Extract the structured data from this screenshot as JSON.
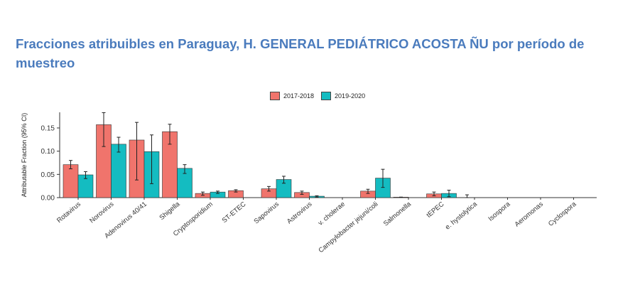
{
  "chart_data": {
    "type": "bar",
    "title": "Fracciones atribuibles en Paraguay, H. GENERAL PEDIÁTRICO ACOSTA ÑU por período de muestreo",
    "xlabel": "",
    "ylabel": "Attributable Fraction (95% CI)",
    "ylim": [
      0,
      0.18
    ],
    "yticks": [
      0.0,
      0.05,
      0.1,
      0.15
    ],
    "ytick_labels": [
      "0.00",
      "0.05",
      "0.10",
      "0.15"
    ],
    "legend_position": "top-center",
    "categories": [
      "Rotavirus",
      "Norovirus",
      "Adenovirus 40/41",
      "Shigella",
      "Cryptosporidium",
      "ST-ETEC",
      "Sapovirus",
      "Astrovirus",
      "v. cholerae",
      "Campylobacter jejuni/coli",
      "Salmonella",
      "tEPEC",
      "e. hystolytica",
      "Isospora",
      "Aeromonas",
      "Cyclospora"
    ],
    "series": [
      {
        "name": "2017-2018",
        "color": "#f0746c",
        "values": [
          0.071,
          0.157,
          0.124,
          0.142,
          0.009,
          0.015,
          0.019,
          0.011,
          0.0,
          0.014,
          0.001,
          0.008,
          0.0,
          0.0,
          0.0,
          0.0
        ],
        "ci_low": [
          0.062,
          0.11,
          0.038,
          0.115,
          0.005,
          0.012,
          0.014,
          0.007,
          0.0,
          0.009,
          0.001,
          0.004,
          0.0,
          0.0,
          0.0,
          0.0
        ],
        "ci_high": [
          0.08,
          0.183,
          0.162,
          0.158,
          0.012,
          0.017,
          0.024,
          0.014,
          0.0,
          0.018,
          0.001,
          0.012,
          0.006,
          0.0,
          0.0,
          0.0
        ]
      },
      {
        "name": "2019-2020",
        "color": "#14bcc1",
        "values": [
          0.049,
          0.115,
          0.099,
          0.063,
          0.012,
          0.0,
          0.039,
          0.003,
          0.0,
          0.042,
          0.0,
          0.009,
          0.0,
          0.0,
          0.0,
          0.0
        ],
        "ci_low": [
          0.041,
          0.098,
          0.03,
          0.052,
          0.009,
          0.0,
          0.031,
          0.001,
          0.0,
          0.022,
          0.0,
          0.002,
          0.0,
          0.0,
          0.0,
          0.0
        ],
        "ci_high": [
          0.056,
          0.13,
          0.135,
          0.071,
          0.014,
          0.0,
          0.046,
          0.004,
          0.0,
          0.061,
          0.0,
          0.016,
          0.0,
          0.0,
          0.0,
          0.0
        ]
      }
    ]
  }
}
